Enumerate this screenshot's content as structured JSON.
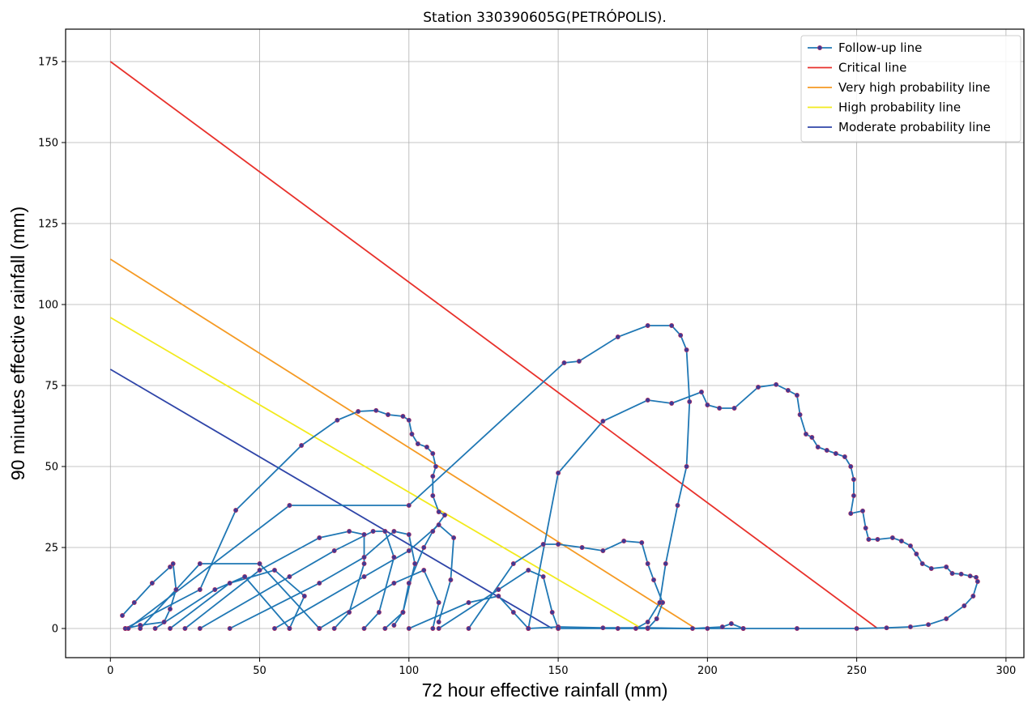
{
  "chart_data": {
    "type": "line",
    "title": "Station 330390605G(PETRÓPOLIS).",
    "xlabel": "72 hour effective rainfall (mm)",
    "ylabel": "90 minutes effective rainfall (mm)",
    "xlim": [
      -15,
      306
    ],
    "ylim": [
      -9,
      185
    ],
    "xticks": [
      0,
      50,
      100,
      150,
      200,
      250,
      300
    ],
    "yticks": [
      0,
      25,
      50,
      75,
      100,
      125,
      150,
      175
    ],
    "grid": true,
    "legend_position": "top-right",
    "colors": {
      "follow": "#1f77b4",
      "marker": "#3b3b98",
      "marker_edge": "#b03060",
      "critical": "#e8312b",
      "very_high": "#f59a23",
      "high": "#f2ea1d",
      "moderate": "#2f45a8"
    },
    "reference_lines": [
      {
        "name": "Critical line",
        "color": "#e8312b",
        "points": [
          [
            0,
            175
          ],
          [
            257,
            0
          ]
        ]
      },
      {
        "name": "Very high probability line",
        "color": "#f59a23",
        "points": [
          [
            0,
            114
          ],
          [
            196,
            0
          ]
        ]
      },
      {
        "name": "High probability line",
        "color": "#f2ea1d",
        "points": [
          [
            0,
            96
          ],
          [
            178,
            0
          ]
        ]
      },
      {
        "name": "Moderate probability line",
        "color": "#2f45a8",
        "points": [
          [
            0,
            80
          ],
          [
            148,
            0
          ]
        ]
      }
    ],
    "follow_up_series": {
      "name": "Follow-up line",
      "segments": [
        [
          [
            4,
            4
          ],
          [
            8,
            8
          ],
          [
            14,
            14
          ],
          [
            20,
            19
          ],
          [
            21,
            20
          ],
          [
            22,
            12
          ],
          [
            20,
            6
          ],
          [
            18,
            2
          ],
          [
            10,
            1
          ],
          [
            5,
            0
          ]
        ],
        [
          [
            5,
            0
          ],
          [
            30,
            12
          ],
          [
            42,
            36.5
          ],
          [
            64,
            56.5
          ],
          [
            76,
            64.3
          ],
          [
            83,
            67
          ],
          [
            89,
            67.3
          ],
          [
            93,
            66
          ],
          [
            98,
            65.5
          ],
          [
            100,
            64.3
          ],
          [
            101,
            60
          ],
          [
            103,
            57
          ],
          [
            106,
            56
          ],
          [
            108,
            54
          ],
          [
            109,
            50
          ],
          [
            108,
            47
          ],
          [
            108,
            41
          ],
          [
            110,
            36
          ],
          [
            112,
            35
          ],
          [
            108,
            30
          ],
          [
            105,
            25
          ],
          [
            100,
            14
          ],
          [
            98,
            5
          ],
          [
            95,
            1
          ]
        ],
        [
          [
            10,
            0
          ],
          [
            30,
            20
          ],
          [
            50,
            20
          ],
          [
            70,
            0
          ]
        ],
        [
          [
            15,
            0
          ],
          [
            35,
            12
          ],
          [
            45,
            16
          ],
          [
            60,
            0
          ]
        ],
        [
          [
            20,
            0
          ],
          [
            40,
            14
          ],
          [
            55,
            18
          ],
          [
            65,
            10
          ],
          [
            60,
            0
          ]
        ],
        [
          [
            25,
            0
          ],
          [
            50,
            18
          ],
          [
            70,
            28
          ],
          [
            80,
            30
          ],
          [
            85,
            29
          ],
          [
            85,
            20
          ],
          [
            80,
            5
          ],
          [
            75,
            0
          ]
        ],
        [
          [
            30,
            0
          ],
          [
            60,
            16
          ],
          [
            75,
            24
          ],
          [
            88,
            30
          ],
          [
            92,
            30
          ],
          [
            95,
            22
          ],
          [
            90,
            5
          ],
          [
            85,
            0
          ]
        ],
        [
          [
            40,
            0
          ],
          [
            70,
            14
          ],
          [
            85,
            22
          ],
          [
            95,
            30
          ],
          [
            100,
            29
          ],
          [
            102,
            20
          ],
          [
            98,
            5
          ],
          [
            92,
            0
          ]
        ],
        [
          [
            55,
            0
          ],
          [
            85,
            16
          ],
          [
            100,
            24
          ],
          [
            110,
            32
          ],
          [
            115,
            28
          ],
          [
            114,
            15
          ],
          [
            110,
            2
          ]
        ],
        [
          [
            70,
            0
          ],
          [
            95,
            14
          ],
          [
            105,
            18
          ],
          [
            110,
            8
          ],
          [
            108,
            0
          ]
        ],
        [
          [
            100,
            0
          ],
          [
            120,
            8
          ],
          [
            130,
            10
          ],
          [
            135,
            5
          ],
          [
            140,
            0
          ]
        ],
        [
          [
            110,
            0
          ],
          [
            130,
            12
          ],
          [
            140,
            18
          ],
          [
            145,
            16
          ],
          [
            148,
            5
          ],
          [
            150,
            0
          ]
        ],
        [
          [
            120,
            0
          ],
          [
            135,
            20
          ],
          [
            145,
            26
          ],
          [
            150,
            26
          ],
          [
            158,
            25
          ],
          [
            165,
            24
          ],
          [
            172,
            27
          ],
          [
            178,
            26.5
          ],
          [
            180,
            20
          ],
          [
            182,
            15
          ],
          [
            185,
            8
          ],
          [
            183,
            3
          ],
          [
            180,
            0
          ]
        ],
        [
          [
            6,
            0
          ],
          [
            60,
            38
          ],
          [
            100,
            38
          ],
          [
            152,
            82
          ],
          [
            157,
            82.5
          ],
          [
            170,
            90
          ],
          [
            180,
            93.5
          ],
          [
            188,
            93.5
          ],
          [
            191,
            90.5
          ],
          [
            193,
            86
          ],
          [
            194,
            70
          ],
          [
            193,
            50
          ],
          [
            190,
            38
          ],
          [
            186,
            20
          ],
          [
            184,
            8
          ],
          [
            180,
            2
          ],
          [
            176,
            0
          ]
        ],
        [
          [
            140,
            0
          ],
          [
            150,
            48
          ],
          [
            165,
            64
          ],
          [
            180,
            70.5
          ],
          [
            188,
            69.5
          ],
          [
            198,
            73
          ],
          [
            200,
            69
          ],
          [
            204,
            68
          ],
          [
            209,
            68
          ],
          [
            217,
            74.5
          ],
          [
            223,
            75.3
          ],
          [
            227,
            73.5
          ],
          [
            230,
            72
          ],
          [
            231,
            66
          ],
          [
            233,
            60
          ],
          [
            235,
            59
          ],
          [
            237,
            56
          ],
          [
            240,
            55
          ],
          [
            243,
            54
          ],
          [
            246,
            53
          ],
          [
            248,
            50
          ],
          [
            249,
            46
          ],
          [
            249,
            41
          ],
          [
            248,
            35.5
          ],
          [
            252,
            36.3
          ],
          [
            253,
            31
          ],
          [
            254,
            27.5
          ],
          [
            257,
            27.5
          ],
          [
            262,
            28
          ],
          [
            265,
            27
          ],
          [
            268,
            25.5
          ],
          [
            270,
            23
          ],
          [
            272,
            20
          ],
          [
            275,
            18.5
          ],
          [
            280,
            19
          ],
          [
            282,
            17
          ],
          [
            285,
            16.8
          ],
          [
            288,
            16.2
          ],
          [
            290,
            15.8
          ],
          [
            290.5,
            14.5
          ],
          [
            289,
            10
          ],
          [
            286,
            7
          ],
          [
            280,
            3
          ],
          [
            274,
            1.2
          ],
          [
            268,
            0.5
          ],
          [
            260,
            0.2
          ],
          [
            250,
            0
          ],
          [
            230,
            0
          ],
          [
            212,
            0
          ],
          [
            208,
            1.5
          ],
          [
            205,
            0.5
          ],
          [
            195,
            0
          ],
          [
            180,
            0.2
          ],
          [
            165,
            0.2
          ],
          [
            150,
            0.5
          ],
          [
            140,
            0
          ]
        ],
        [
          [
            150,
            0
          ],
          [
            170,
            0
          ],
          [
            200,
            0
          ],
          [
            212,
            0
          ]
        ]
      ]
    },
    "legend": [
      "Follow-up line",
      "Critical line",
      "Very high probability line",
      "High probability line",
      "Moderate probability line"
    ]
  }
}
